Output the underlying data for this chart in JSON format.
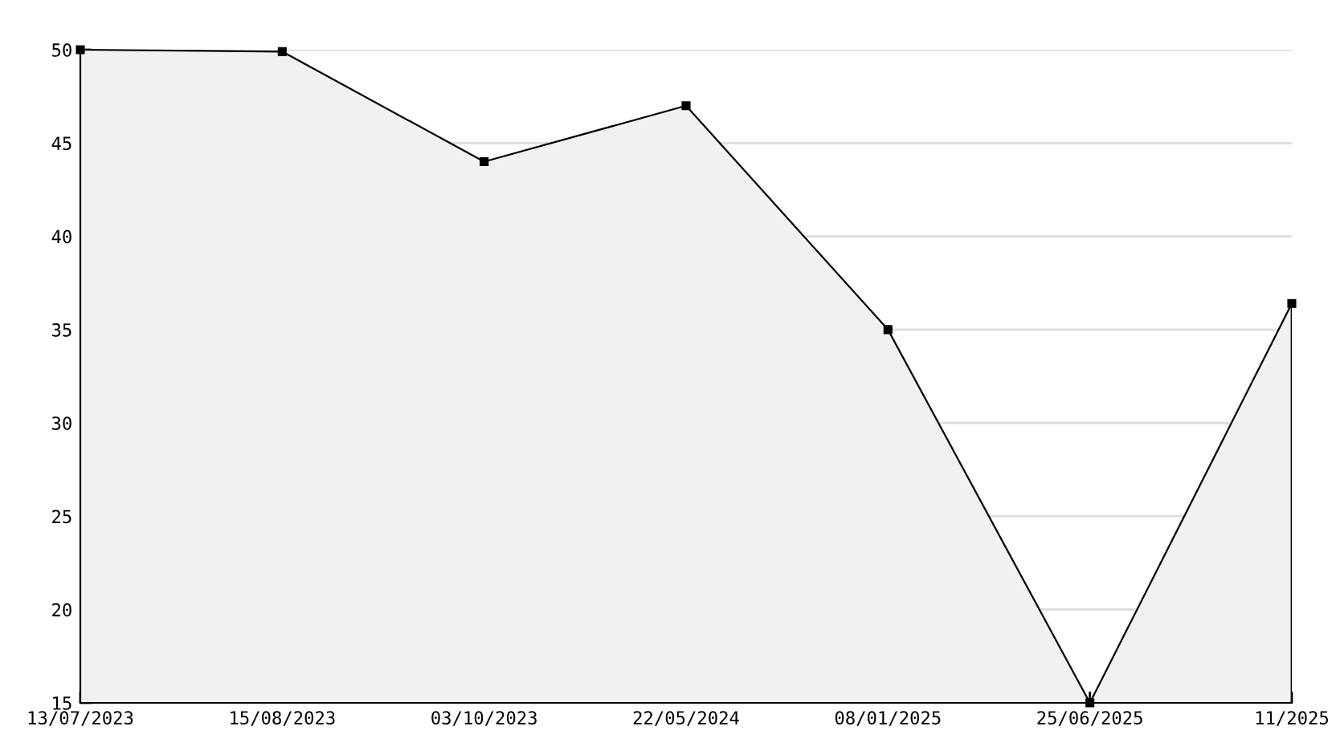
{
  "chart_data": {
    "type": "area",
    "categories": [
      "13/07/2023",
      "15/08/2023",
      "03/10/2023",
      "22/05/2024",
      "08/01/2025",
      "25/06/2025",
      "11/2025"
    ],
    "series": [
      {
        "color": "#000000",
        "values": [
          50,
          49.9,
          44,
          47,
          35,
          15,
          36.4
        ]
      }
    ],
    "ylim": [
      15,
      50
    ],
    "yticks": [
      15,
      20,
      25,
      30,
      35,
      40,
      45,
      50
    ],
    "grid": "y",
    "marker": "square",
    "line_style": "solid",
    "legend": false
  }
}
